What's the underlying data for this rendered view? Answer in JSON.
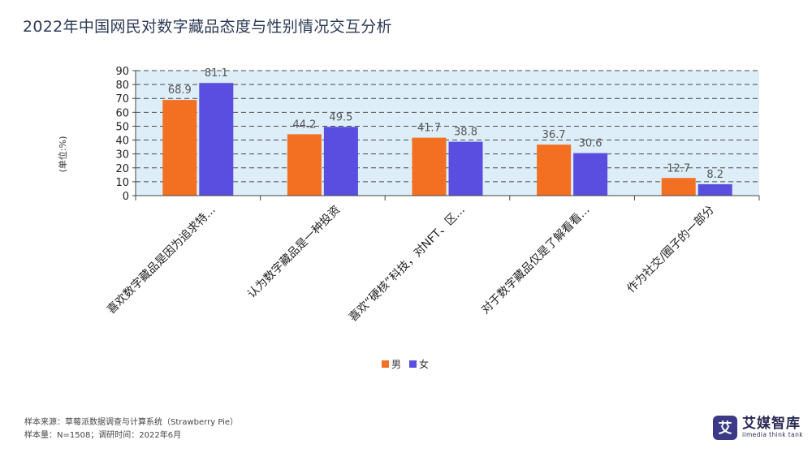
{
  "page": {
    "title": "2022年中国网民对数字藏品态度与性别情况交互分析"
  },
  "chart_data": {
    "type": "bar",
    "title": "",
    "ylabel": "(单位:%)",
    "ylim": [
      0,
      90
    ],
    "yticks": [
      0,
      10,
      20,
      30,
      40,
      50,
      60,
      70,
      80,
      90
    ],
    "grid": true,
    "legend_position": "bottom-center",
    "categories": [
      "喜欢数字藏品是因为追求特...",
      "认为数字藏品是一种投资",
      "喜欢“硬核”科技，对NFT、区...",
      "对于数字藏品仅是了解看看...",
      "作为社交/圈子的一部分"
    ],
    "series": [
      {
        "name": "男",
        "color": "#f36f21",
        "values": [
          68.9,
          44.2,
          41.7,
          36.7,
          12.7
        ],
        "labels": [
          "68.9",
          "44.2",
          "41.7",
          "36.7",
          "12.7"
        ]
      },
      {
        "name": "女",
        "color": "#5a4ee0",
        "values": [
          81.1,
          49.5,
          38.8,
          30.6,
          8.2
        ],
        "labels": [
          "81.1",
          "49.5",
          "38.8",
          "30.6",
          "8.2"
        ]
      }
    ],
    "plot_background": "#ddeef9"
  },
  "footer": {
    "source": "样本来源：草莓派数据调查与计算系统（Strawberry Pie）",
    "sample": "样本量：N=1508；调研时间：2022年6月"
  },
  "logo": {
    "name_cn": "艾媒智库",
    "name_en": "iimedia think tank",
    "mark_glyph": "艾"
  }
}
